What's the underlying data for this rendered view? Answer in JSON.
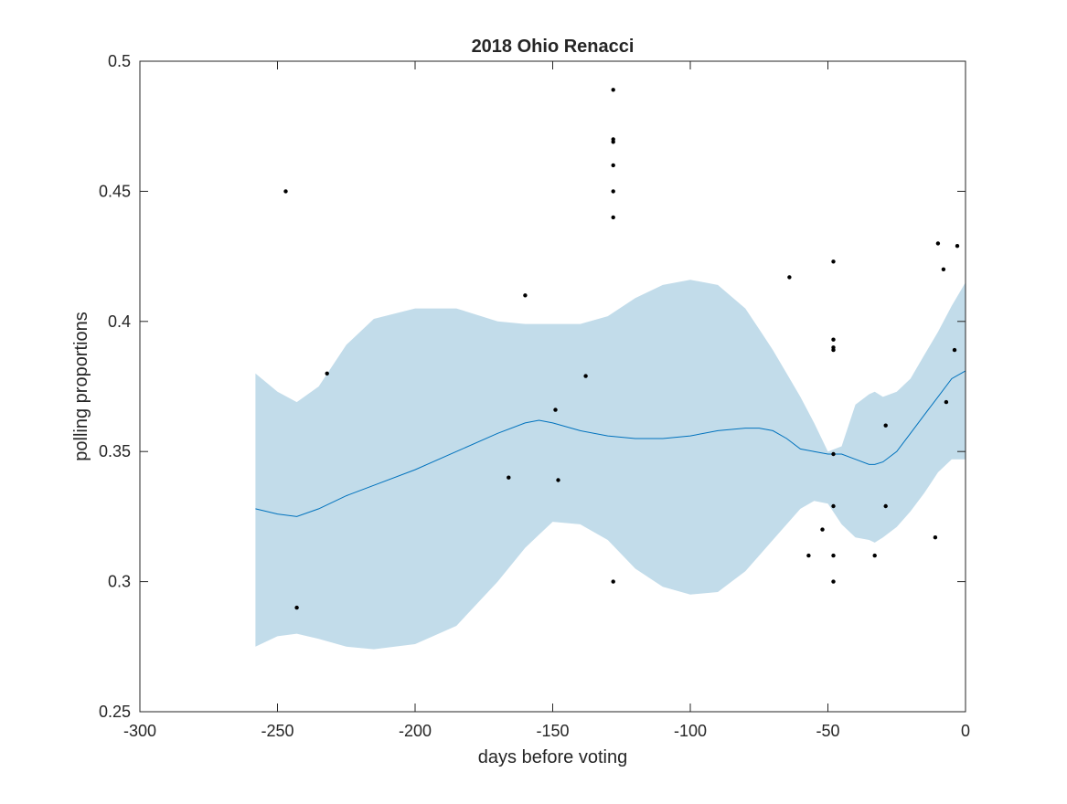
{
  "chart_data": {
    "type": "scatter",
    "title": "2018 Ohio Renacci",
    "xlabel": "days before voting",
    "ylabel": "polling proportions",
    "xlim": [
      -300,
      0
    ],
    "ylim": [
      0.25,
      0.5
    ],
    "xticks": [
      -300,
      -250,
      -200,
      -150,
      -100,
      -50,
      0
    ],
    "yticks": [
      0.25,
      0.3,
      0.35,
      0.4,
      0.45,
      0.5
    ],
    "xtick_labels": [
      "-300",
      "-250",
      "-200",
      "-150",
      "-100",
      "-50",
      "0"
    ],
    "ytick_labels": [
      "0.25",
      "0.3",
      "0.35",
      "0.4",
      "0.45",
      "0.5"
    ],
    "grid": false,
    "colors": {
      "points": "#000000",
      "trend": "#0072bd",
      "band": "#c2dcea",
      "axes": "#262626"
    },
    "points": {
      "x": [
        -247,
        -243,
        -232,
        -166,
        -160,
        -149,
        -148,
        -138,
        -128,
        -128,
        -128,
        -128,
        -128,
        -128,
        -128,
        -64,
        -57,
        -52,
        -48,
        -48,
        -48,
        -48,
        -48,
        -48,
        -48,
        -48,
        -33,
        -29,
        -29,
        -11,
        -10,
        -8,
        -7,
        -4,
        -3
      ],
      "y": [
        0.45,
        0.29,
        0.38,
        0.34,
        0.41,
        0.366,
        0.339,
        0.379,
        0.489,
        0.47,
        0.469,
        0.46,
        0.45,
        0.44,
        0.3,
        0.417,
        0.31,
        0.32,
        0.423,
        0.393,
        0.39,
        0.389,
        0.349,
        0.329,
        0.31,
        0.3,
        0.31,
        0.36,
        0.329,
        0.317,
        0.43,
        0.42,
        0.369,
        0.389,
        0.429
      ]
    },
    "series": [
      {
        "type": "line",
        "x": [
          -258,
          -250,
          -243,
          -235,
          -225,
          -215,
          -200,
          -185,
          -170,
          -160,
          -155,
          -150,
          -140,
          -130,
          -120,
          -110,
          -100,
          -90,
          -80,
          -75,
          -70,
          -65,
          -60,
          -55,
          -50,
          -45,
          -40,
          -35,
          -33,
          -30,
          -25,
          -20,
          -15,
          -10,
          -5,
          0
        ],
        "y": [
          0.328,
          0.326,
          0.325,
          0.328,
          0.333,
          0.337,
          0.343,
          0.35,
          0.357,
          0.361,
          0.362,
          0.361,
          0.358,
          0.356,
          0.355,
          0.355,
          0.356,
          0.358,
          0.359,
          0.359,
          0.358,
          0.355,
          0.351,
          0.35,
          0.349,
          0.349,
          0.347,
          0.345,
          0.345,
          0.346,
          0.35,
          0.357,
          0.364,
          0.371,
          0.378,
          0.381
        ]
      },
      {
        "type": "band",
        "x": [
          -258,
          -250,
          -243,
          -235,
          -225,
          -215,
          -200,
          -185,
          -170,
          -160,
          -155,
          -150,
          -140,
          -130,
          -120,
          -110,
          -100,
          -90,
          -80,
          -75,
          -70,
          -65,
          -60,
          -55,
          -50,
          -45,
          -40,
          -35,
          -33,
          -30,
          -25,
          -20,
          -15,
          -10,
          -5,
          0
        ],
        "upper": [
          0.38,
          0.373,
          0.369,
          0.375,
          0.391,
          0.401,
          0.405,
          0.405,
          0.4,
          0.399,
          0.399,
          0.399,
          0.399,
          0.402,
          0.409,
          0.414,
          0.416,
          0.414,
          0.405,
          0.397,
          0.389,
          0.38,
          0.371,
          0.361,
          0.35,
          0.352,
          0.368,
          0.372,
          0.373,
          0.371,
          0.373,
          0.378,
          0.387,
          0.396,
          0.406,
          0.415
        ],
        "lower": [
          0.275,
          0.279,
          0.28,
          0.278,
          0.275,
          0.274,
          0.276,
          0.283,
          0.3,
          0.313,
          0.318,
          0.323,
          0.322,
          0.316,
          0.305,
          0.298,
          0.295,
          0.296,
          0.304,
          0.31,
          0.316,
          0.322,
          0.328,
          0.331,
          0.33,
          0.322,
          0.317,
          0.316,
          0.315,
          0.317,
          0.321,
          0.327,
          0.334,
          0.342,
          0.347,
          0.347
        ]
      }
    ]
  }
}
